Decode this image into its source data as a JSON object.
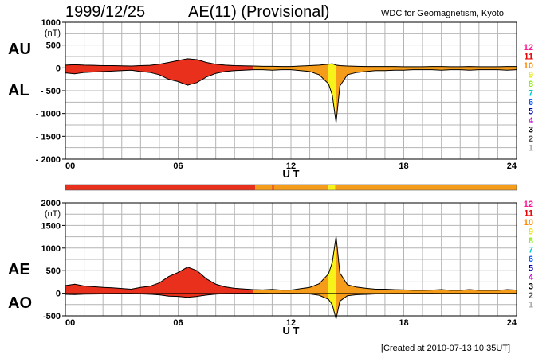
{
  "header": {
    "date": "1999/12/25",
    "title": "AE(11) (Provisional)",
    "source": "WDC for Geomagnetism, Kyoto"
  },
  "footer": {
    "created": "[Created at 2010-07-13 10:35UT]"
  },
  "panel_labels": {
    "au": "AU",
    "al": "AL",
    "ae": "AE",
    "ao": "AO"
  },
  "activity_scale": {
    "labels": [
      "12",
      "11",
      "10",
      "9",
      "8",
      "7",
      "6",
      "5",
      "4",
      "3",
      "2",
      "1"
    ],
    "colors": [
      "#ff1493",
      "#ee0000",
      "#ff8c00",
      "#e8e800",
      "#88ee00",
      "#00cccc",
      "#0055ff",
      "#0000aa",
      "#cc00cc",
      "#000000",
      "#555555",
      "#aaaaaa"
    ]
  },
  "colors": {
    "red": "#e8301c",
    "orange": "#f59c1a",
    "yellow": "#f7f21a"
  },
  "activity_bar": [
    {
      "from": 0,
      "to": 10.1,
      "color": "#e8301c"
    },
    {
      "from": 10.1,
      "to": 11.0,
      "color": "#f59c1a"
    },
    {
      "from": 11.0,
      "to": 11.1,
      "color": "#e8301c"
    },
    {
      "from": 11.1,
      "to": 14.0,
      "color": "#f59c1a"
    },
    {
      "from": 14.0,
      "to": 14.35,
      "color": "#f7f21a"
    },
    {
      "from": 14.35,
      "to": 24,
      "color": "#f59c1a"
    }
  ],
  "chart_data": [
    {
      "type": "area",
      "panel": "AU/AL",
      "title": "",
      "xlabel": "U T",
      "ylabel": "(nT)",
      "xlim": [
        0,
        24
      ],
      "ylim": [
        -2000,
        1000
      ],
      "xticks": [
        "00",
        "06",
        "12",
        "18",
        "24"
      ],
      "yticks": [
        "1000",
        "(nT)",
        "500",
        "0",
        "- 500",
        "- 1000",
        "- 1500",
        "- 2000"
      ],
      "grid": true,
      "series": [
        {
          "name": "AU",
          "x": [
            0,
            0.5,
            1,
            1.5,
            2,
            2.5,
            3,
            3.5,
            4,
            4.5,
            5,
            5.5,
            6,
            6.5,
            7,
            7.5,
            8,
            8.5,
            9,
            9.5,
            10,
            10.5,
            11,
            11.5,
            12,
            12.5,
            13,
            13.5,
            14,
            14.2,
            14.4,
            14.6,
            15,
            15.5,
            16,
            16.5,
            17,
            17.5,
            18,
            18.5,
            19,
            19.5,
            20,
            20.5,
            21,
            21.5,
            22,
            22.5,
            23,
            23.5,
            24
          ],
          "values": [
            60,
            70,
            60,
            55,
            50,
            50,
            45,
            40,
            50,
            55,
            80,
            120,
            160,
            200,
            180,
            120,
            80,
            60,
            50,
            45,
            40,
            35,
            35,
            30,
            30,
            40,
            50,
            60,
            80,
            90,
            60,
            50,
            40,
            35,
            30,
            30,
            30,
            30,
            25,
            25,
            25,
            30,
            30,
            25,
            25,
            30,
            25,
            25,
            25,
            30,
            30
          ]
        },
        {
          "name": "AL",
          "x": [
            0,
            0.5,
            1,
            1.5,
            2,
            2.5,
            3,
            3.5,
            4,
            4.5,
            5,
            5.5,
            6,
            6.5,
            7,
            7.5,
            8,
            8.5,
            9,
            9.5,
            10,
            10.5,
            11,
            11.5,
            12,
            12.5,
            13,
            13.5,
            14,
            14.2,
            14.4,
            14.6,
            15,
            15.5,
            16,
            16.5,
            17,
            17.5,
            18,
            18.5,
            19,
            19.5,
            20,
            20.5,
            21,
            21.5,
            22,
            22.5,
            23,
            23.5,
            24
          ],
          "values": [
            -110,
            -130,
            -100,
            -90,
            -80,
            -70,
            -60,
            -50,
            -80,
            -100,
            -150,
            -250,
            -300,
            -380,
            -320,
            -200,
            -120,
            -80,
            -60,
            -50,
            -40,
            -40,
            -50,
            -40,
            -40,
            -60,
            -80,
            -150,
            -350,
            -600,
            -1200,
            -400,
            -150,
            -100,
            -80,
            -60,
            -60,
            -50,
            -50,
            -40,
            -40,
            -40,
            -50,
            -40,
            -40,
            -50,
            -40,
            -40,
            -40,
            -50,
            -40
          ]
        }
      ]
    },
    {
      "type": "area",
      "panel": "AE/AO",
      "title": "",
      "xlabel": "U T",
      "ylabel": "(nT)",
      "xlim": [
        0,
        24
      ],
      "ylim": [
        -500,
        2000
      ],
      "xticks": [
        "00",
        "06",
        "12",
        "18",
        "24"
      ],
      "yticks": [
        "2000",
        "(nT)",
        "1500",
        "1000",
        "500",
        "0",
        "-500"
      ],
      "grid": true,
      "series": [
        {
          "name": "AE",
          "x": [
            0,
            0.5,
            1,
            1.5,
            2,
            2.5,
            3,
            3.5,
            4,
            4.5,
            5,
            5.5,
            6,
            6.5,
            7,
            7.5,
            8,
            8.5,
            9,
            9.5,
            10,
            10.5,
            11,
            11.5,
            12,
            12.5,
            13,
            13.5,
            14,
            14.2,
            14.4,
            14.6,
            15,
            15.5,
            16,
            16.5,
            17,
            17.5,
            18,
            18.5,
            19,
            19.5,
            20,
            20.5,
            21,
            21.5,
            22,
            22.5,
            23,
            23.5,
            24
          ],
          "values": [
            170,
            200,
            160,
            145,
            130,
            120,
            105,
            90,
            130,
            155,
            230,
            370,
            460,
            580,
            500,
            320,
            200,
            140,
            110,
            95,
            80,
            75,
            85,
            70,
            70,
            100,
            130,
            210,
            430,
            690,
            1260,
            450,
            190,
            135,
            110,
            90,
            90,
            80,
            75,
            65,
            65,
            70,
            80,
            65,
            65,
            80,
            65,
            65,
            65,
            80,
            70
          ]
        },
        {
          "name": "AO",
          "x": [
            0,
            0.5,
            1,
            1.5,
            2,
            2.5,
            3,
            3.5,
            4,
            4.5,
            5,
            5.5,
            6,
            6.5,
            7,
            7.5,
            8,
            8.5,
            9,
            9.5,
            10,
            10.5,
            11,
            11.5,
            12,
            12.5,
            13,
            13.5,
            14,
            14.2,
            14.4,
            14.6,
            15,
            15.5,
            16,
            16.5,
            17,
            17.5,
            18,
            18.5,
            19,
            19.5,
            20,
            20.5,
            21,
            21.5,
            22,
            22.5,
            23,
            23.5,
            24
          ],
          "values": [
            -25,
            -30,
            -20,
            -17,
            -15,
            -10,
            -8,
            -5,
            -15,
            -22,
            -35,
            -65,
            -70,
            -90,
            -70,
            -40,
            -20,
            -10,
            -5,
            -3,
            0,
            -3,
            -8,
            -5,
            -5,
            -10,
            -15,
            -45,
            -135,
            -255,
            -570,
            -175,
            -55,
            -32,
            -25,
            -15,
            -15,
            -10,
            -12,
            -8,
            -8,
            -5,
            -10,
            -8,
            -8,
            -10,
            -8,
            -8,
            -8,
            -10,
            -5
          ]
        }
      ]
    }
  ]
}
